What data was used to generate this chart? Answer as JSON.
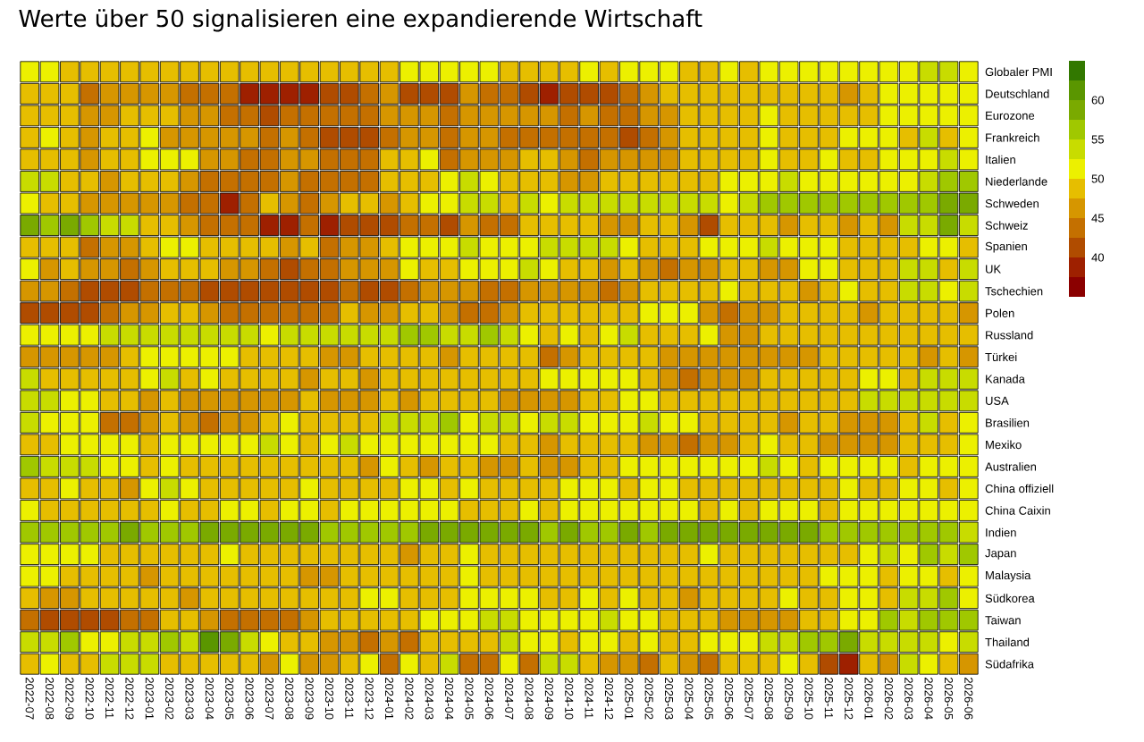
{
  "chart_data": {
    "type": "heatmap",
    "title": "Werte über 50 signalisieren eine expandierende Wirtschaft",
    "categories": [
      "2022-07",
      "2022-08",
      "2022-09",
      "2022-10",
      "2022-11",
      "2022-12",
      "2023-01",
      "2023-02",
      "2023-03",
      "2023-04",
      "2023-05",
      "2023-06",
      "2023-07",
      "2023-08",
      "2023-09",
      "2023-10",
      "2023-11",
      "2023-12",
      "2024-01",
      "2024-02",
      "2024-03",
      "2024-04",
      "2024-05",
      "2024-06",
      "2024-07",
      "2024-08",
      "2024-09",
      "2024-10",
      "2024-11",
      "2024-12",
      "2025-01",
      "2025-02",
      "2025-03",
      "2025-04",
      "2025-05",
      "2025-06",
      "2025-07",
      "2025-08",
      "2025-09",
      "2025-10",
      "2025-11",
      "2025-12",
      "2026-01",
      "2026-02",
      "2026-03",
      "2026-04",
      "2026-05",
      "2026-06"
    ],
    "y_categories": [
      "Globaler PMI",
      "Deutschland",
      "Eurozone",
      "Frankreich",
      "Italien",
      "Niederlande",
      "Schweden",
      "Schweiz",
      "Spanien",
      "UK",
      "Tschechien",
      "Polen",
      "Russland",
      "Türkei",
      "Kanada",
      "USA",
      "Brasilien",
      "Mexiko",
      "Australien",
      "China offiziell",
      "China Caixin",
      "Indien",
      "Japan",
      "Malaysia",
      "Südkorea",
      "Taiwan",
      "Thailand",
      "Südafrika"
    ],
    "cells": [
      [
        51,
        51,
        49,
        49,
        49,
        49,
        49,
        49,
        49,
        49,
        49,
        49,
        49,
        49,
        49,
        49,
        49,
        49,
        49,
        51,
        51,
        51,
        51,
        51,
        49,
        49,
        49,
        49,
        51,
        49,
        51,
        51,
        51,
        49,
        49,
        51,
        49,
        51,
        51,
        51,
        51,
        51,
        51,
        51,
        51,
        54,
        54,
        51
      ],
      [
        49,
        49,
        49,
        44,
        46,
        46,
        46,
        46,
        44,
        44,
        44,
        39,
        39,
        39,
        39,
        41,
        41,
        44,
        46,
        41,
        41,
        41,
        46,
        44,
        44,
        41,
        39,
        41,
        41,
        41,
        44,
        46,
        49,
        49,
        49,
        49,
        49,
        49,
        49,
        49,
        49,
        46,
        49,
        51,
        51,
        51,
        51,
        51
      ],
      [
        49,
        49,
        49,
        46,
        46,
        49,
        49,
        49,
        46,
        46,
        44,
        44,
        41,
        44,
        44,
        44,
        44,
        44,
        46,
        46,
        46,
        44,
        46,
        46,
        46,
        46,
        46,
        44,
        46,
        44,
        44,
        46,
        46,
        49,
        49,
        49,
        49,
        51,
        49,
        49,
        49,
        49,
        49,
        51,
        51,
        51,
        51,
        51
      ],
      [
        49,
        51,
        49,
        46,
        49,
        49,
        51,
        46,
        46,
        46,
        46,
        46,
        44,
        46,
        44,
        41,
        41,
        41,
        44,
        46,
        46,
        44,
        46,
        46,
        44,
        44,
        44,
        44,
        44,
        44,
        41,
        44,
        46,
        49,
        49,
        49,
        49,
        51,
        49,
        49,
        49,
        51,
        51,
        51,
        49,
        54,
        49,
        51
      ],
      [
        49,
        49,
        49,
        46,
        49,
        49,
        51,
        51,
        51,
        46,
        46,
        44,
        44,
        46,
        46,
        44,
        44,
        44,
        49,
        49,
        51,
        44,
        46,
        46,
        46,
        49,
        49,
        46,
        44,
        46,
        46,
        46,
        46,
        49,
        49,
        49,
        49,
        51,
        49,
        49,
        51,
        49,
        49,
        51,
        51,
        51,
        54,
        51
      ],
      [
        54,
        54,
        49,
        49,
        46,
        49,
        49,
        49,
        46,
        44,
        44,
        44,
        44,
        46,
        44,
        44,
        44,
        44,
        49,
        49,
        49,
        51,
        54,
        51,
        49,
        49,
        49,
        46,
        46,
        49,
        49,
        49,
        49,
        49,
        49,
        51,
        51,
        51,
        54,
        51,
        51,
        51,
        51,
        51,
        51,
        54,
        56,
        56
      ],
      [
        51,
        49,
        49,
        46,
        46,
        46,
        46,
        46,
        44,
        44,
        39,
        44,
        49,
        46,
        44,
        46,
        49,
        49,
        46,
        49,
        51,
        51,
        54,
        54,
        49,
        54,
        51,
        54,
        54,
        54,
        54,
        54,
        54,
        54,
        54,
        51,
        54,
        56,
        56,
        56,
        56,
        56,
        56,
        56,
        56,
        56,
        59,
        59
      ],
      [
        59,
        56,
        59,
        56,
        54,
        54,
        49,
        49,
        46,
        44,
        44,
        44,
        39,
        39,
        44,
        39,
        41,
        41,
        41,
        44,
        44,
        41,
        46,
        44,
        44,
        49,
        49,
        49,
        49,
        46,
        46,
        49,
        49,
        46,
        41,
        49,
        49,
        49,
        46,
        49,
        49,
        46,
        49,
        46,
        54,
        54,
        59,
        54
      ],
      [
        49,
        49,
        49,
        44,
        46,
        46,
        49,
        51,
        51,
        49,
        49,
        49,
        49,
        46,
        49,
        44,
        46,
        46,
        49,
        51,
        51,
        51,
        54,
        51,
        51,
        51,
        54,
        54,
        54,
        54,
        51,
        49,
        49,
        49,
        51,
        51,
        51,
        54,
        51,
        51,
        51,
        49,
        49,
        49,
        49,
        51,
        51,
        49
      ],
      [
        51,
        46,
        49,
        46,
        46,
        44,
        46,
        49,
        49,
        49,
        46,
        46,
        44,
        41,
        44,
        44,
        46,
        46,
        46,
        51,
        49,
        49,
        51,
        51,
        51,
        54,
        51,
        49,
        49,
        46,
        49,
        46,
        44,
        46,
        46,
        49,
        49,
        46,
        46,
        51,
        51,
        49,
        49,
        49,
        54,
        54,
        49,
        54
      ],
      [
        46,
        46,
        44,
        41,
        41,
        41,
        44,
        44,
        44,
        41,
        41,
        41,
        41,
        41,
        41,
        41,
        44,
        41,
        41,
        44,
        46,
        46,
        46,
        44,
        44,
        46,
        46,
        46,
        46,
        44,
        46,
        49,
        49,
        49,
        49,
        51,
        49,
        49,
        49,
        46,
        49,
        51,
        49,
        49,
        54,
        54,
        51,
        54
      ],
      [
        41,
        41,
        41,
        41,
        44,
        46,
        46,
        49,
        49,
        46,
        44,
        44,
        44,
        44,
        44,
        44,
        49,
        46,
        46,
        49,
        49,
        46,
        44,
        44,
        46,
        49,
        49,
        49,
        49,
        49,
        49,
        51,
        51,
        51,
        46,
        44,
        46,
        46,
        49,
        49,
        49,
        49,
        46,
        49,
        49,
        49,
        49,
        46
      ],
      [
        51,
        51,
        51,
        51,
        54,
        54,
        54,
        54,
        54,
        54,
        54,
        54,
        51,
        54,
        54,
        54,
        54,
        54,
        54,
        56,
        56,
        54,
        54,
        56,
        54,
        51,
        49,
        51,
        49,
        51,
        54,
        49,
        49,
        49,
        51,
        46,
        46,
        49,
        49,
        49,
        49,
        49,
        49,
        49,
        49,
        49,
        49,
        49
      ],
      [
        46,
        46,
        46,
        46,
        46,
        49,
        51,
        51,
        51,
        51,
        51,
        49,
        49,
        49,
        49,
        46,
        46,
        49,
        49,
        49,
        49,
        46,
        49,
        49,
        49,
        49,
        44,
        46,
        49,
        49,
        49,
        49,
        46,
        46,
        46,
        46,
        46,
        46,
        46,
        46,
        49,
        49,
        49,
        49,
        49,
        46,
        49,
        46
      ],
      [
        54,
        49,
        49,
        49,
        49,
        49,
        51,
        54,
        49,
        51,
        49,
        49,
        49,
        49,
        46,
        49,
        49,
        46,
        49,
        49,
        49,
        49,
        49,
        49,
        49,
        49,
        51,
        51,
        51,
        51,
        51,
        49,
        46,
        44,
        46,
        46,
        46,
        49,
        49,
        49,
        49,
        49,
        51,
        51,
        49,
        54,
        54,
        54
      ],
      [
        54,
        54,
        51,
        51,
        49,
        49,
        46,
        49,
        46,
        46,
        46,
        46,
        46,
        46,
        49,
        46,
        46,
        46,
        49,
        46,
        49,
        49,
        49,
        49,
        46,
        46,
        46,
        46,
        49,
        49,
        51,
        51,
        49,
        49,
        49,
        49,
        49,
        49,
        49,
        49,
        49,
        49,
        54,
        54,
        54,
        54,
        54,
        54
      ],
      [
        54,
        51,
        51,
        51,
        44,
        44,
        46,
        49,
        46,
        44,
        46,
        46,
        49,
        51,
        49,
        49,
        49,
        49,
        54,
        54,
        54,
        56,
        51,
        54,
        54,
        51,
        54,
        54,
        51,
        51,
        51,
        54,
        51,
        51,
        49,
        49,
        49,
        49,
        46,
        49,
        49,
        46,
        46,
        46,
        49,
        54,
        49,
        51
      ],
      [
        49,
        49,
        51,
        51,
        51,
        51,
        49,
        51,
        51,
        51,
        51,
        51,
        54,
        51,
        49,
        51,
        54,
        51,
        51,
        51,
        51,
        51,
        51,
        51,
        49,
        49,
        46,
        49,
        49,
        49,
        49,
        46,
        46,
        44,
        46,
        46,
        49,
        51,
        49,
        49,
        46,
        46,
        46,
        46,
        49,
        49,
        49,
        51
      ],
      [
        56,
        54,
        54,
        54,
        51,
        51,
        49,
        51,
        49,
        49,
        49,
        49,
        49,
        49,
        49,
        49,
        49,
        46,
        51,
        49,
        46,
        49,
        49,
        46,
        46,
        49,
        46,
        46,
        49,
        49,
        51,
        51,
        51,
        51,
        51,
        51,
        51,
        54,
        51,
        49,
        51,
        51,
        51,
        51,
        49,
        51,
        51,
        51
      ],
      [
        49,
        49,
        51,
        49,
        49,
        46,
        51,
        54,
        51,
        49,
        49,
        49,
        49,
        49,
        51,
        49,
        49,
        49,
        49,
        51,
        51,
        49,
        51,
        49,
        49,
        49,
        49,
        51,
        51,
        51,
        49,
        51,
        51,
        49,
        49,
        49,
        49,
        49,
        49,
        49,
        49,
        51,
        49,
        49,
        51,
        51,
        49,
        51
      ],
      [
        51,
        49,
        49,
        49,
        49,
        49,
        49,
        51,
        49,
        49,
        51,
        51,
        49,
        51,
        51,
        49,
        51,
        51,
        51,
        51,
        51,
        51,
        49,
        49,
        49,
        51,
        49,
        51,
        51,
        51,
        51,
        51,
        51,
        51,
        49,
        51,
        49,
        51,
        51,
        51,
        49,
        51,
        51,
        51,
        51,
        51,
        51,
        51
      ],
      [
        56,
        56,
        56,
        56,
        56,
        59,
        56,
        56,
        56,
        59,
        59,
        59,
        59,
        59,
        59,
        56,
        56,
        56,
        56,
        56,
        59,
        59,
        59,
        59,
        59,
        59,
        56,
        59,
        56,
        56,
        59,
        56,
        59,
        59,
        59,
        59,
        59,
        59,
        59,
        59,
        56,
        56,
        56,
        56,
        56,
        56,
        56,
        54
      ],
      [
        51,
        51,
        51,
        51,
        49,
        49,
        49,
        49,
        49,
        49,
        51,
        49,
        49,
        49,
        49,
        49,
        49,
        49,
        49,
        46,
        49,
        49,
        51,
        49,
        49,
        49,
        49,
        49,
        49,
        49,
        49,
        49,
        49,
        49,
        51,
        49,
        49,
        49,
        49,
        49,
        49,
        49,
        51,
        54,
        51,
        56,
        54,
        56
      ],
      [
        51,
        51,
        49,
        49,
        49,
        49,
        46,
        49,
        49,
        49,
        49,
        49,
        49,
        49,
        46,
        46,
        49,
        49,
        49,
        49,
        49,
        49,
        51,
        49,
        49,
        49,
        49,
        49,
        49,
        49,
        49,
        49,
        49,
        49,
        49,
        49,
        49,
        49,
        49,
        49,
        51,
        51,
        51,
        49,
        51,
        51,
        49,
        51
      ],
      [
        49,
        46,
        46,
        49,
        49,
        49,
        49,
        49,
        46,
        49,
        49,
        49,
        49,
        49,
        49,
        49,
        49,
        51,
        51,
        49,
        49,
        49,
        51,
        51,
        51,
        51,
        49,
        49,
        51,
        49,
        51,
        49,
        49,
        46,
        49,
        49,
        49,
        49,
        51,
        49,
        49,
        51,
        51,
        49,
        54,
        54,
        56,
        51
      ],
      [
        44,
        41,
        41,
        41,
        41,
        44,
        44,
        49,
        49,
        46,
        44,
        44,
        44,
        44,
        46,
        49,
        49,
        49,
        49,
        49,
        51,
        51,
        51,
        54,
        54,
        51,
        51,
        51,
        51,
        54,
        51,
        51,
        49,
        49,
        49,
        46,
        46,
        46,
        46,
        49,
        49,
        51,
        51,
        56,
        54,
        56,
        56,
        56
      ],
      [
        54,
        54,
        56,
        51,
        51,
        54,
        54,
        56,
        54,
        61,
        59,
        54,
        51,
        49,
        49,
        46,
        46,
        44,
        46,
        44,
        49,
        49,
        49,
        49,
        54,
        51,
        51,
        49,
        51,
        51,
        49,
        51,
        49,
        49,
        51,
        51,
        51,
        54,
        54,
        56,
        56,
        59,
        54,
        54,
        54,
        54,
        51,
        54
      ],
      [
        49,
        51,
        49,
        49,
        54,
        54,
        54,
        49,
        49,
        49,
        49,
        49,
        46,
        51,
        46,
        46,
        49,
        51,
        44,
        51,
        49,
        54,
        44,
        44,
        51,
        44,
        54,
        54,
        49,
        46,
        46,
        44,
        49,
        46,
        44,
        49,
        49,
        49,
        51,
        49,
        41,
        39,
        49,
        46,
        54,
        51,
        49,
        46
      ]
    ],
    "clim": [
      35,
      65
    ],
    "cticks": [
      40,
      45,
      50,
      55,
      60
    ]
  }
}
